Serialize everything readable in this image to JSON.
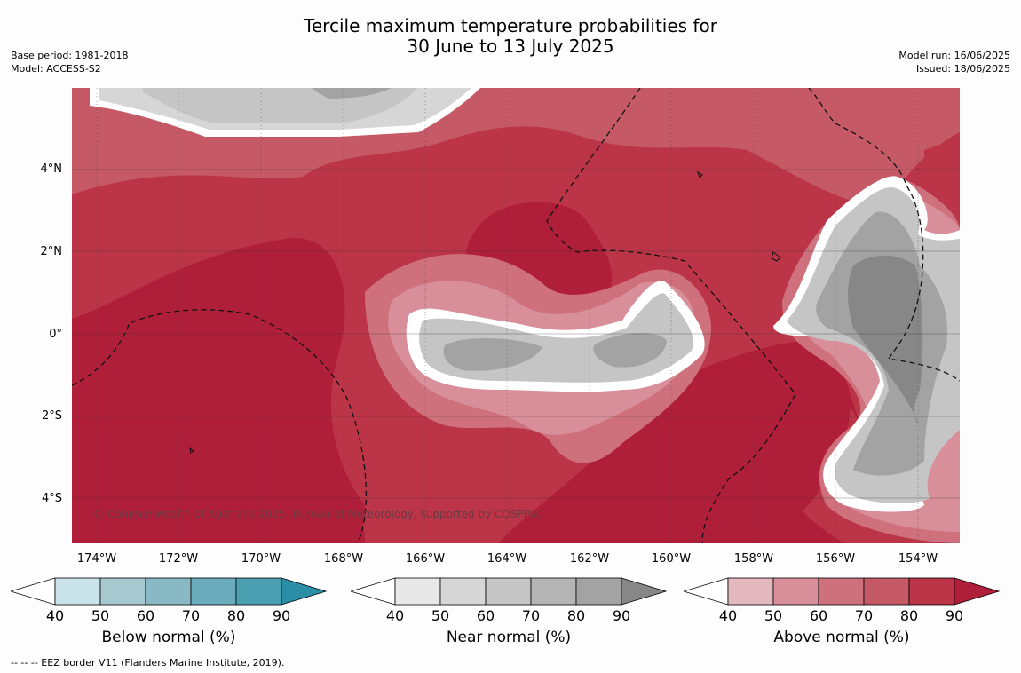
{
  "title_line1": "Tercile maximum temperature probabilities for",
  "title_line2": "30 June to 13 July 2025",
  "base_period": "Base period: 1981-2018",
  "model": "Model: ACCESS-S2",
  "model_run": "Model run: 16/06/2025",
  "issued": "Issued: 18/06/2025",
  "copyright": "© Commonwealth of Australia 2025, Bureau of Meteorology, supported by COSPPac",
  "footnote": "--  --  -- EEZ border V11 (Flanders Marine Institute, 2019).",
  "lat_labels": [
    "4°N",
    "2°N",
    "0°",
    "2°S",
    "4°S"
  ],
  "lon_labels": [
    "174°W",
    "172°W",
    "170°W",
    "168°W",
    "166°W",
    "164°W",
    "162°W",
    "160°W",
    "158°W",
    "156°W",
    "154°W"
  ],
  "colorbars": {
    "below": {
      "title": "Below normal (%)",
      "ticks": [
        "40",
        "50",
        "60",
        "70",
        "80",
        "90"
      ],
      "colors": [
        "#cae3ea",
        "#a8c8cf",
        "#8ab9c6",
        "#6aacbb",
        "#4aa0b1",
        "#2b8ea7"
      ]
    },
    "near": {
      "title": "Near normal (%)",
      "ticks": [
        "40",
        "50",
        "60",
        "70",
        "80",
        "90"
      ],
      "colors": [
        "#e8e8e8",
        "#d6d6d6",
        "#c5c5c5",
        "#b5b5b5",
        "#a3a3a3",
        "#878787"
      ]
    },
    "above": {
      "title": "Above normal (%)",
      "ticks": [
        "40",
        "50",
        "60",
        "70",
        "80",
        "90"
      ],
      "colors": [
        "#e3b8bf",
        "#d88f9a",
        "#ce717c",
        "#c55966",
        "#bb3448",
        "#b01f3a"
      ]
    }
  }
}
